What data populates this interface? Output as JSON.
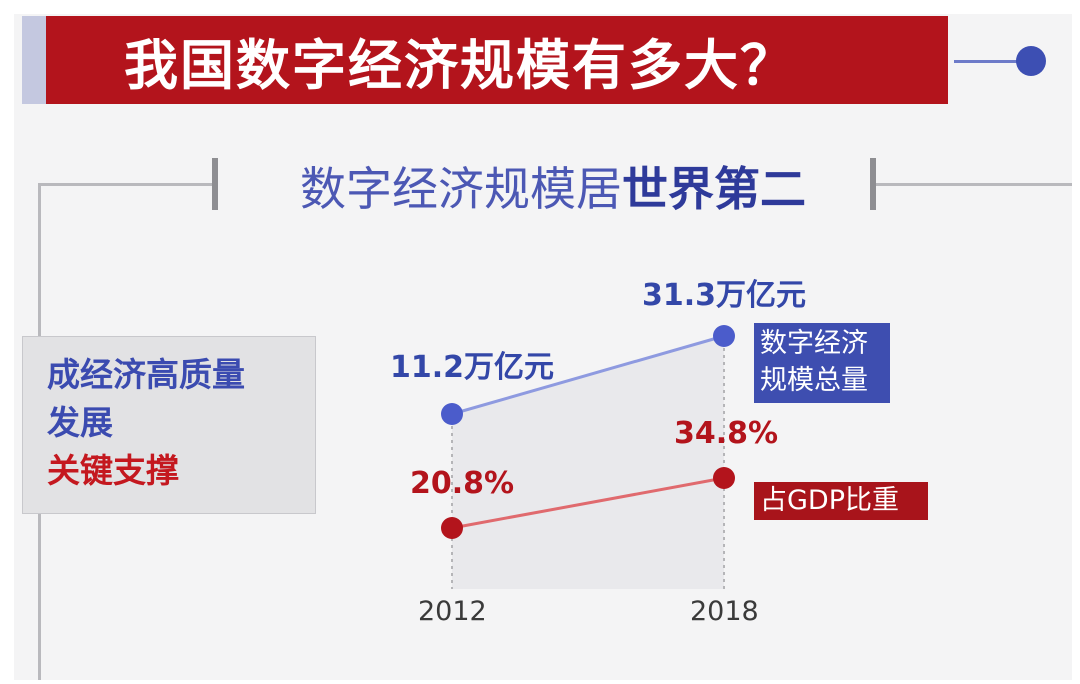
{
  "header": {
    "title": "我国数字经济规模有多大？"
  },
  "subtitle": {
    "normal": "数字经济规模居",
    "bold": "世界第二"
  },
  "side_box": {
    "line1": "成经济高质量",
    "line2": "发展",
    "line3": "关键支撑"
  },
  "colors": {
    "title_red": "#b3141c",
    "series_blue": "#4b5ccb",
    "series_red": "#b3141c"
  },
  "chart_data": {
    "type": "line",
    "title": "",
    "xlabel": "",
    "ylabel": "",
    "categories": [
      "2012",
      "2018"
    ],
    "series": [
      {
        "name": "数字经济规模总量",
        "values": [
          11.2,
          31.3
        ],
        "unit": "万亿元",
        "labels": [
          "11.2万亿元",
          "31.3万亿元"
        ]
      },
      {
        "name": "占GDP比重",
        "values": [
          20.8,
          34.8
        ],
        "unit": "%",
        "labels": [
          "20.8%",
          "34.8%"
        ]
      }
    ],
    "grid": false,
    "legend": "right"
  }
}
